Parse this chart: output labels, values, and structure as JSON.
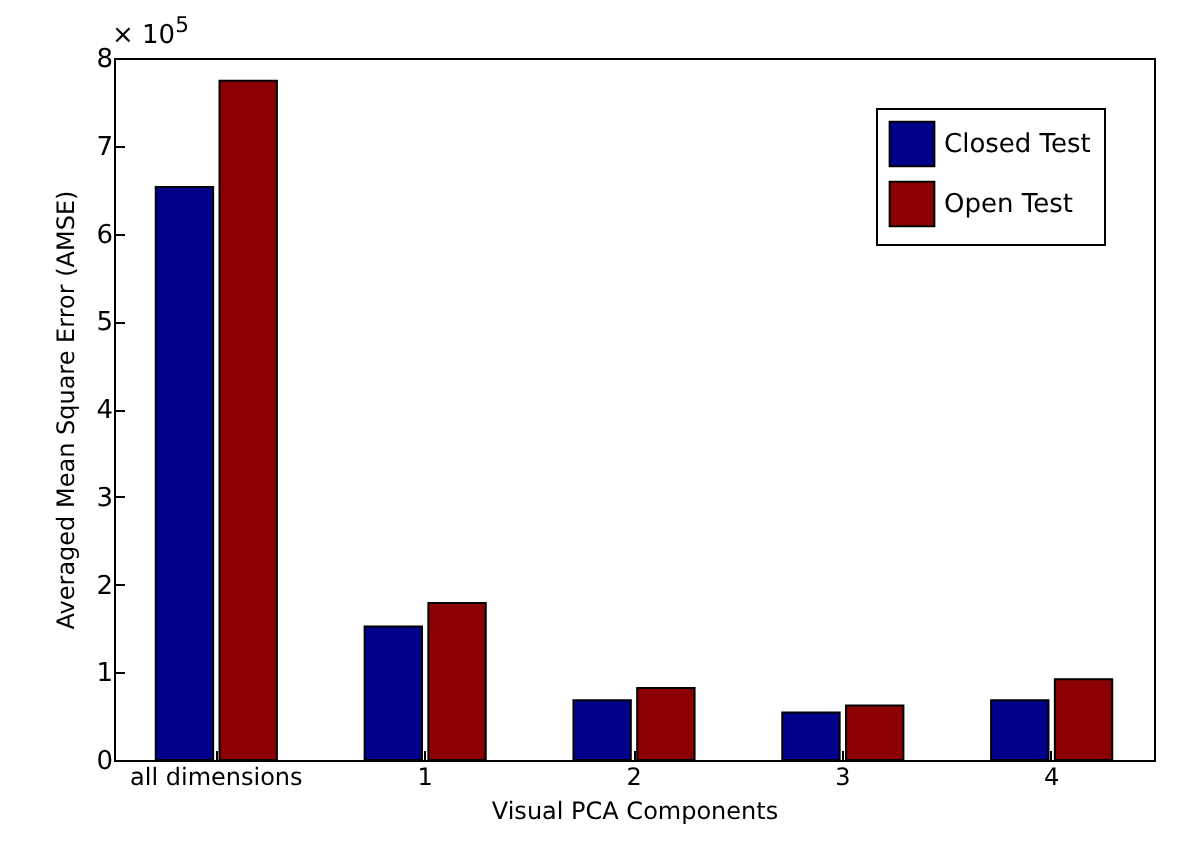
{
  "chart_data": {
    "type": "bar",
    "xlabel": "Visual PCA Components",
    "ylabel": "Averaged Mean Square Error (AMSE)",
    "categories": [
      "all dimensions",
      "1",
      "2",
      "3",
      "4"
    ],
    "series": [
      {
        "name": "Closed Test",
        "color": "#00008b",
        "values": [
          6.53,
          1.52,
          0.68,
          0.54,
          0.68
        ]
      },
      {
        "name": "Open Test",
        "color": "#8b0000",
        "values": [
          7.74,
          1.79,
          0.82,
          0.62,
          0.92
        ]
      }
    ],
    "ylim": [
      0,
      8
    ],
    "yticks": [
      0,
      1,
      2,
      3,
      4,
      5,
      6,
      7,
      8
    ],
    "grid": false,
    "legend": "top right",
    "annotations": [
      "× 10$^{5}$"
    ]
  }
}
